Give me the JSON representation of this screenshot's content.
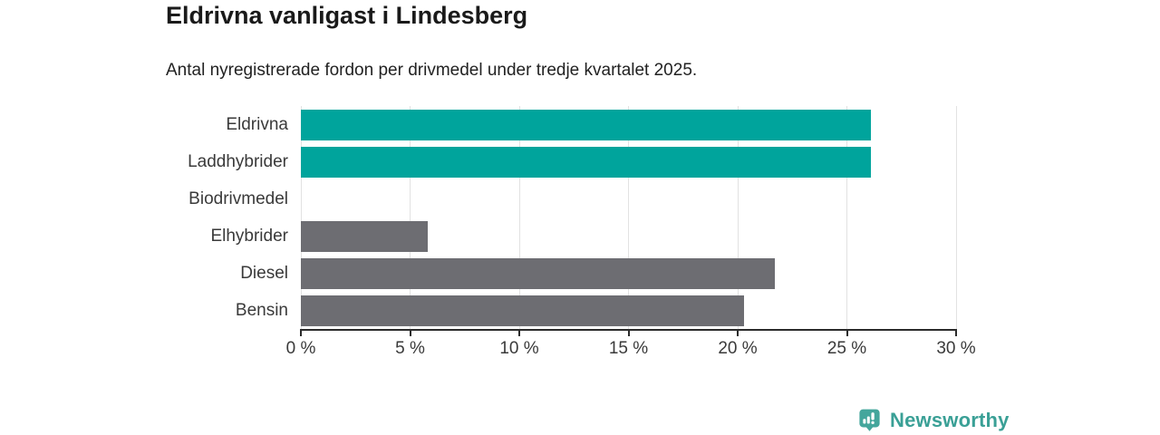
{
  "header": {
    "title": "Eldrivna vanligast i Lindesberg",
    "subtitle": "Antal nyregistrerade fordon per drivmedel under tredje kvartalet 2025."
  },
  "chart_data": {
    "type": "bar",
    "orientation": "horizontal",
    "title": "Eldrivna vanligast i Lindesberg",
    "subtitle": "Antal nyregistrerade fordon per drivmedel under tredje kvartalet 2025.",
    "categories": [
      "Eldrivna",
      "Laddhybrider",
      "Biodrivmedel",
      "Elhybrider",
      "Diesel",
      "Bensin"
    ],
    "values": [
      26.1,
      26.1,
      0,
      5.8,
      21.7,
      20.3
    ],
    "highlighted": [
      true,
      true,
      false,
      false,
      false,
      false
    ],
    "unit": "%",
    "xlabel": "",
    "ylabel": "",
    "xlim": [
      0,
      30
    ],
    "x_ticks": [
      0,
      5,
      10,
      15,
      20,
      25,
      30
    ],
    "x_tick_labels": [
      "0 %",
      "5 %",
      "10 %",
      "15 %",
      "20 %",
      "25 %",
      "30 %"
    ],
    "grid": "vertical-gridlines",
    "legend": "none"
  },
  "colors": {
    "highlight_bar": "#00a49c",
    "default_bar": "#6d6d72",
    "gridline": "#e2e2e2",
    "axis": "#2b2b2b",
    "text_dark": "#1a1a1a",
    "text_label": "#3a3a3a",
    "logo_text": "#3aa096",
    "logo_icon": "#44a69c"
  },
  "footer": {
    "brand": "Newsworthy"
  }
}
